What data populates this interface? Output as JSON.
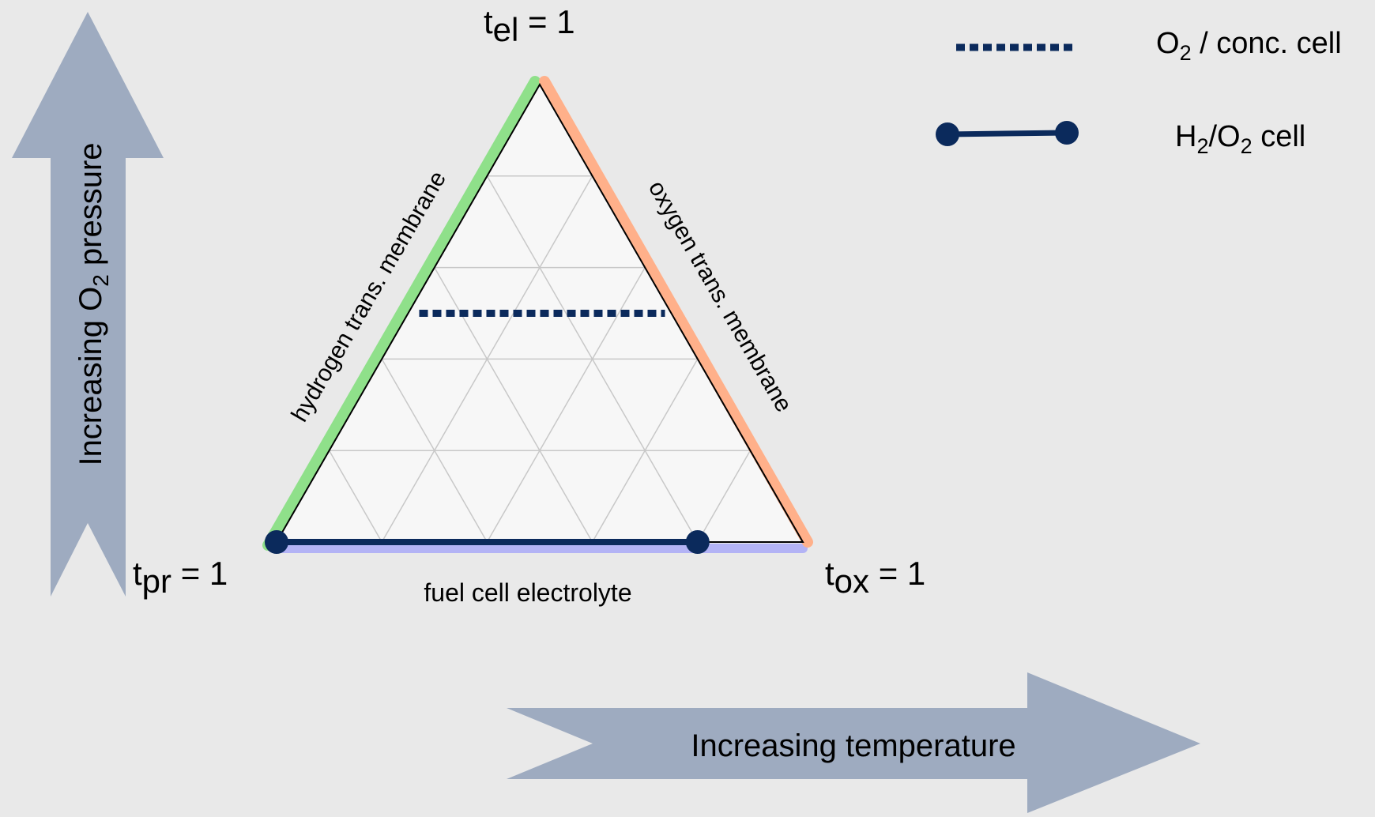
{
  "vertices": {
    "top": {
      "sym": "t",
      "sub": "el",
      "eq": " = 1"
    },
    "left": {
      "sym": "t",
      "sub": "pr",
      "eq": " = 1"
    },
    "right": {
      "sym": "t",
      "sub": "ox",
      "eq": " = 1"
    }
  },
  "edges": {
    "left": {
      "label": "hydrogen trans. membrane",
      "color": "#8fe08a"
    },
    "right": {
      "label": "oxygen trans. membrane",
      "color": "#ffb08a"
    },
    "bottom": {
      "label": "fuel cell electrolyte",
      "color": "#b3b3f5"
    }
  },
  "arrows": {
    "vertical": {
      "pre": "Increasing O",
      "sub": "2",
      "post": " pressure"
    },
    "horizontal": {
      "label": "Increasing temperature"
    },
    "color": "#9eabc0"
  },
  "legend": [
    {
      "style": "dotted",
      "pre": "O",
      "sub": "2",
      "post": " / conc. cell"
    },
    {
      "style": "solid-dots",
      "pre": "H",
      "sub": "2",
      "mid": "/O",
      "sub2": "2",
      "post": " cell"
    }
  ],
  "lines": {
    "color": "#0b2a5c",
    "conc_cell": {
      "t_el": 0.5
    },
    "h2o2_cell": {
      "t_ox_start": 0.0,
      "t_ox_end": 0.8
    }
  },
  "grid": {
    "divisions": 5
  }
}
